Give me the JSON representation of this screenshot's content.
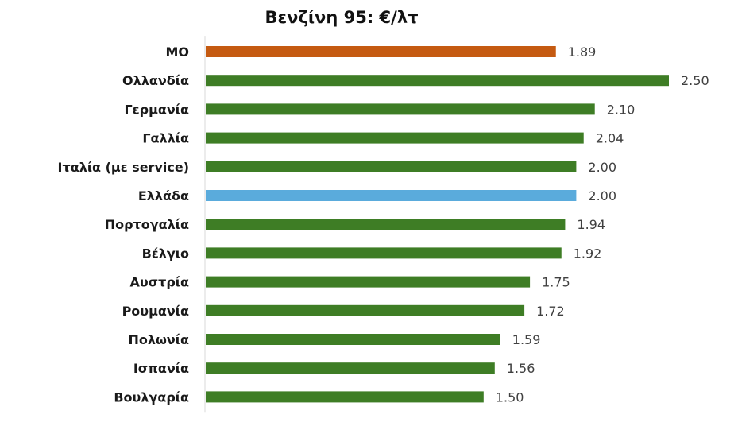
{
  "chart_data": {
    "type": "bar",
    "orientation": "horizontal",
    "title": "Βενζίνη 95: €/λτ",
    "xlabel": "",
    "ylabel": "",
    "categories": [
      "ΜΟ",
      "Ολλανδία",
      "Γερμανία",
      "Γαλλία",
      "Ιταλία (με service)",
      "Ελλάδα",
      "Πορτογαλία",
      "Βέλγιο",
      "Αυστρία",
      "Ρουμανία",
      "Πολωνία",
      "Ισπανία",
      "Βουλγαρία"
    ],
    "values": [
      1.89,
      2.5,
      2.1,
      2.04,
      2.0,
      2.0,
      1.94,
      1.92,
      1.75,
      1.72,
      1.59,
      1.56,
      1.5
    ],
    "value_labels": [
      "1.89",
      "2.50",
      "2.10",
      "2.04",
      "2.00",
      "2.00",
      "1.94",
      "1.92",
      "1.75",
      "1.72",
      "1.59",
      "1.56",
      "1.50"
    ],
    "bar_colors": [
      "#c55a11",
      "#3e7d25",
      "#3e7d25",
      "#3e7d25",
      "#3e7d25",
      "#5aabdc",
      "#3e7d25",
      "#3e7d25",
      "#3e7d25",
      "#3e7d25",
      "#3e7d25",
      "#3e7d25",
      "#3e7d25"
    ],
    "xlim": [
      0,
      2.5
    ],
    "grid": false,
    "legend": "none"
  }
}
